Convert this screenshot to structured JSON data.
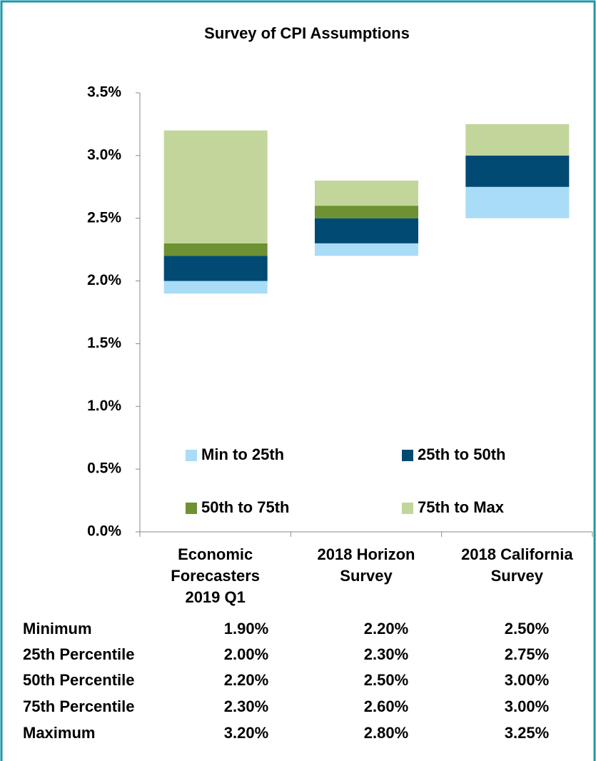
{
  "chart_data": {
    "type": "floating-bar",
    "title": "Survey of CPI Assumptions",
    "categories": [
      "Economic\nForecasters\n2019 Q1",
      "2018 Horizon\nSurvey",
      "2018 California\nSurvey"
    ],
    "series": [
      {
        "name": "Min to 25th",
        "color": "#a9dcf7"
      },
      {
        "name": "25th to 50th",
        "color": "#004a73"
      },
      {
        "name": "50th to 75th",
        "color": "#6e9133"
      },
      {
        "name": "75th to Max",
        "color": "#c2d69b"
      }
    ],
    "table": {
      "rows": [
        {
          "label": "Minimum",
          "values": [
            1.9,
            2.2,
            2.5
          ],
          "value_labels": [
            "1.90%",
            "2.20%",
            "2.50%"
          ]
        },
        {
          "label": "25th Percentile",
          "values": [
            2.0,
            2.3,
            2.75
          ],
          "value_labels": [
            "2.00%",
            "2.30%",
            "2.75%"
          ]
        },
        {
          "label": "50th Percentile",
          "values": [
            2.2,
            2.5,
            3.0
          ],
          "value_labels": [
            "2.20%",
            "2.50%",
            "3.00%"
          ]
        },
        {
          "label": "75th Percentile",
          "values": [
            2.3,
            2.6,
            3.0
          ],
          "value_labels": [
            "2.30%",
            "2.60%",
            "3.00%"
          ]
        },
        {
          "label": "Maximum",
          "values": [
            3.2,
            2.8,
            3.25
          ],
          "value_labels": [
            "3.20%",
            "2.80%",
            "3.25%"
          ]
        }
      ]
    },
    "ylim": [
      0,
      3.5
    ],
    "yticks": [
      {
        "value": 0,
        "label": "0.0%"
      },
      {
        "value": 0.5,
        "label": "0.5%"
      },
      {
        "value": 1,
        "label": "1.0%"
      },
      {
        "value": 1.5,
        "label": "1.5%"
      },
      {
        "value": 2,
        "label": "2.0%"
      },
      {
        "value": 2.5,
        "label": "2.5%"
      },
      {
        "value": 3,
        "label": "3.0%"
      },
      {
        "value": 3.5,
        "label": "3.5%"
      }
    ],
    "grid": false
  }
}
